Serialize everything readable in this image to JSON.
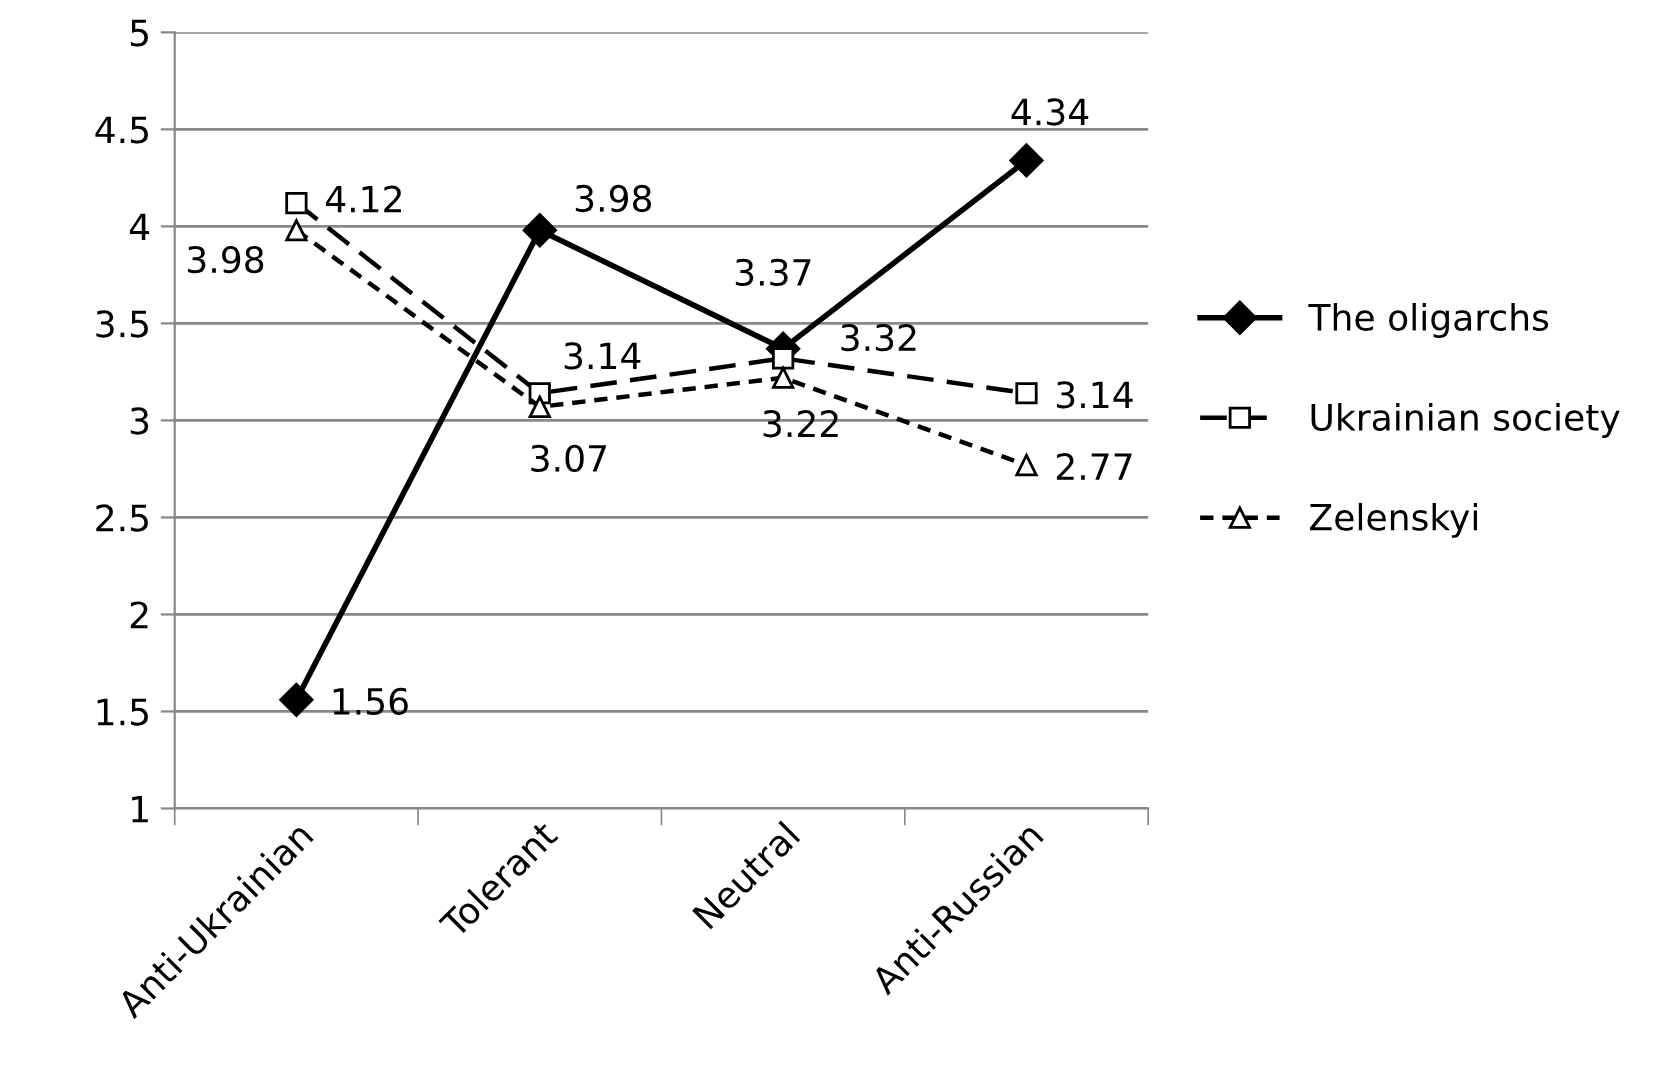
{
  "chart_data": {
    "type": "line",
    "categories": [
      "Anti-Ukrainian",
      "Tolerant",
      "Neutral",
      "Anti-Russian"
    ],
    "series": [
      {
        "name": "The oligarchs",
        "color": "#000000",
        "values": [
          1.56,
          3.98,
          3.37,
          4.34
        ],
        "marker": "diamond",
        "line_style": "solid"
      },
      {
        "name": "Ukrainian society",
        "color": "#000000",
        "values": [
          4.12,
          3.14,
          3.32,
          3.14
        ],
        "marker": "square",
        "line_style": "dashed"
      },
      {
        "name": "Zelenskyi",
        "color": "#000000",
        "values": [
          3.98,
          3.07,
          3.22,
          2.77
        ],
        "marker": "triangle",
        "line_style": "dotted"
      }
    ],
    "ylim": [
      1,
      5
    ],
    "yticks": [
      1,
      1.5,
      2,
      2.5,
      3,
      3.5,
      4,
      4.5,
      5
    ],
    "grid": "y",
    "legend": "right",
    "data_labels": true
  }
}
